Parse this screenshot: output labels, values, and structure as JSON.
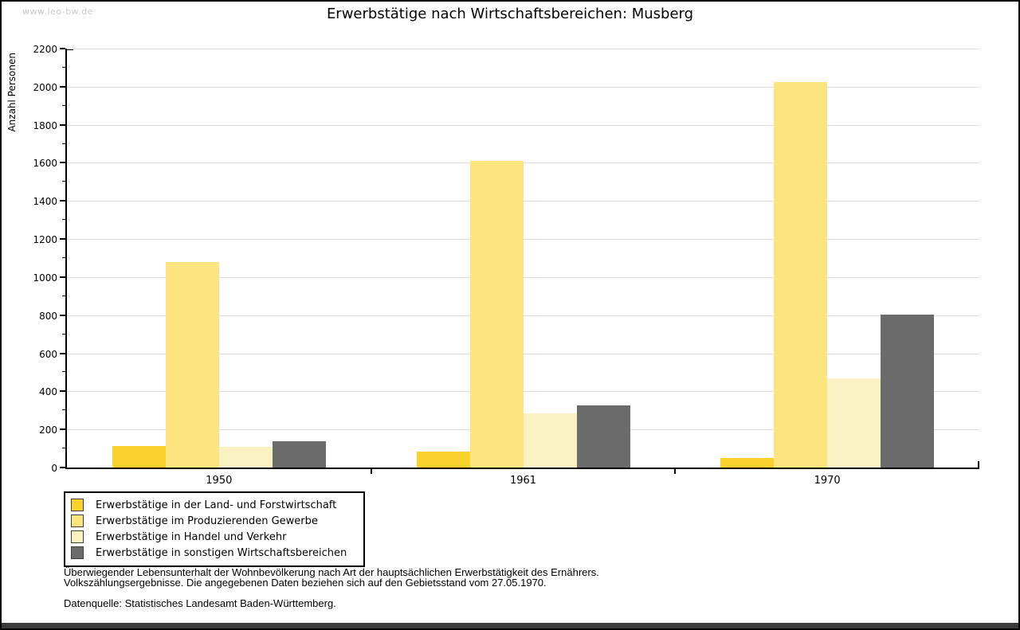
{
  "watermark": "www.leo-bw.de",
  "title": "Erwerbstätige nach Wirtschaftsbereichen: Musberg",
  "chart_data": {
    "type": "bar",
    "title": "Erwerbstätige nach Wirtschaftsbereichen: Musberg",
    "xlabel": "",
    "ylabel": "Anzahl Personen",
    "ylim": [
      0,
      2200
    ],
    "yticks": [
      0,
      200,
      400,
      600,
      800,
      1000,
      1200,
      1400,
      1600,
      1800,
      2000,
      2200
    ],
    "minor_tick_step": 100,
    "grid": true,
    "legend_position": "bottom-left",
    "categories": [
      "1950",
      "1961",
      "1970"
    ],
    "series": [
      {
        "name": "Erwerbstätige in der Land- und Forstwirtschaft",
        "color": "#fbd12e",
        "values": [
          115,
          85,
          50
        ]
      },
      {
        "name": "Erwerbstätige im Produzierenden Gewerbe",
        "color": "#fce47f",
        "values": [
          1080,
          1610,
          2025
        ]
      },
      {
        "name": "Erwerbstätige in Handel und Verkehr",
        "color": "#faf2c2",
        "values": [
          110,
          285,
          470
        ]
      },
      {
        "name": "Erwerbstätige in sonstigen Wirtschaftsbereichen",
        "color": "#6b6b6b",
        "values": [
          140,
          325,
          805
        ]
      }
    ]
  },
  "footer": {
    "line1": "Überwiegender Lebensunterhalt der Wohnbevölkerung nach Art der hauptsächlichen Erwerbstätigkeit des Ernährers.",
    "line2": "Volkszählungsergebnisse. Die angegebenen Daten beziehen sich auf den Gebietsstand vom 27.05.1970.",
    "source": "Datenquelle: Statistisches Landesamt Baden-Württemberg."
  }
}
